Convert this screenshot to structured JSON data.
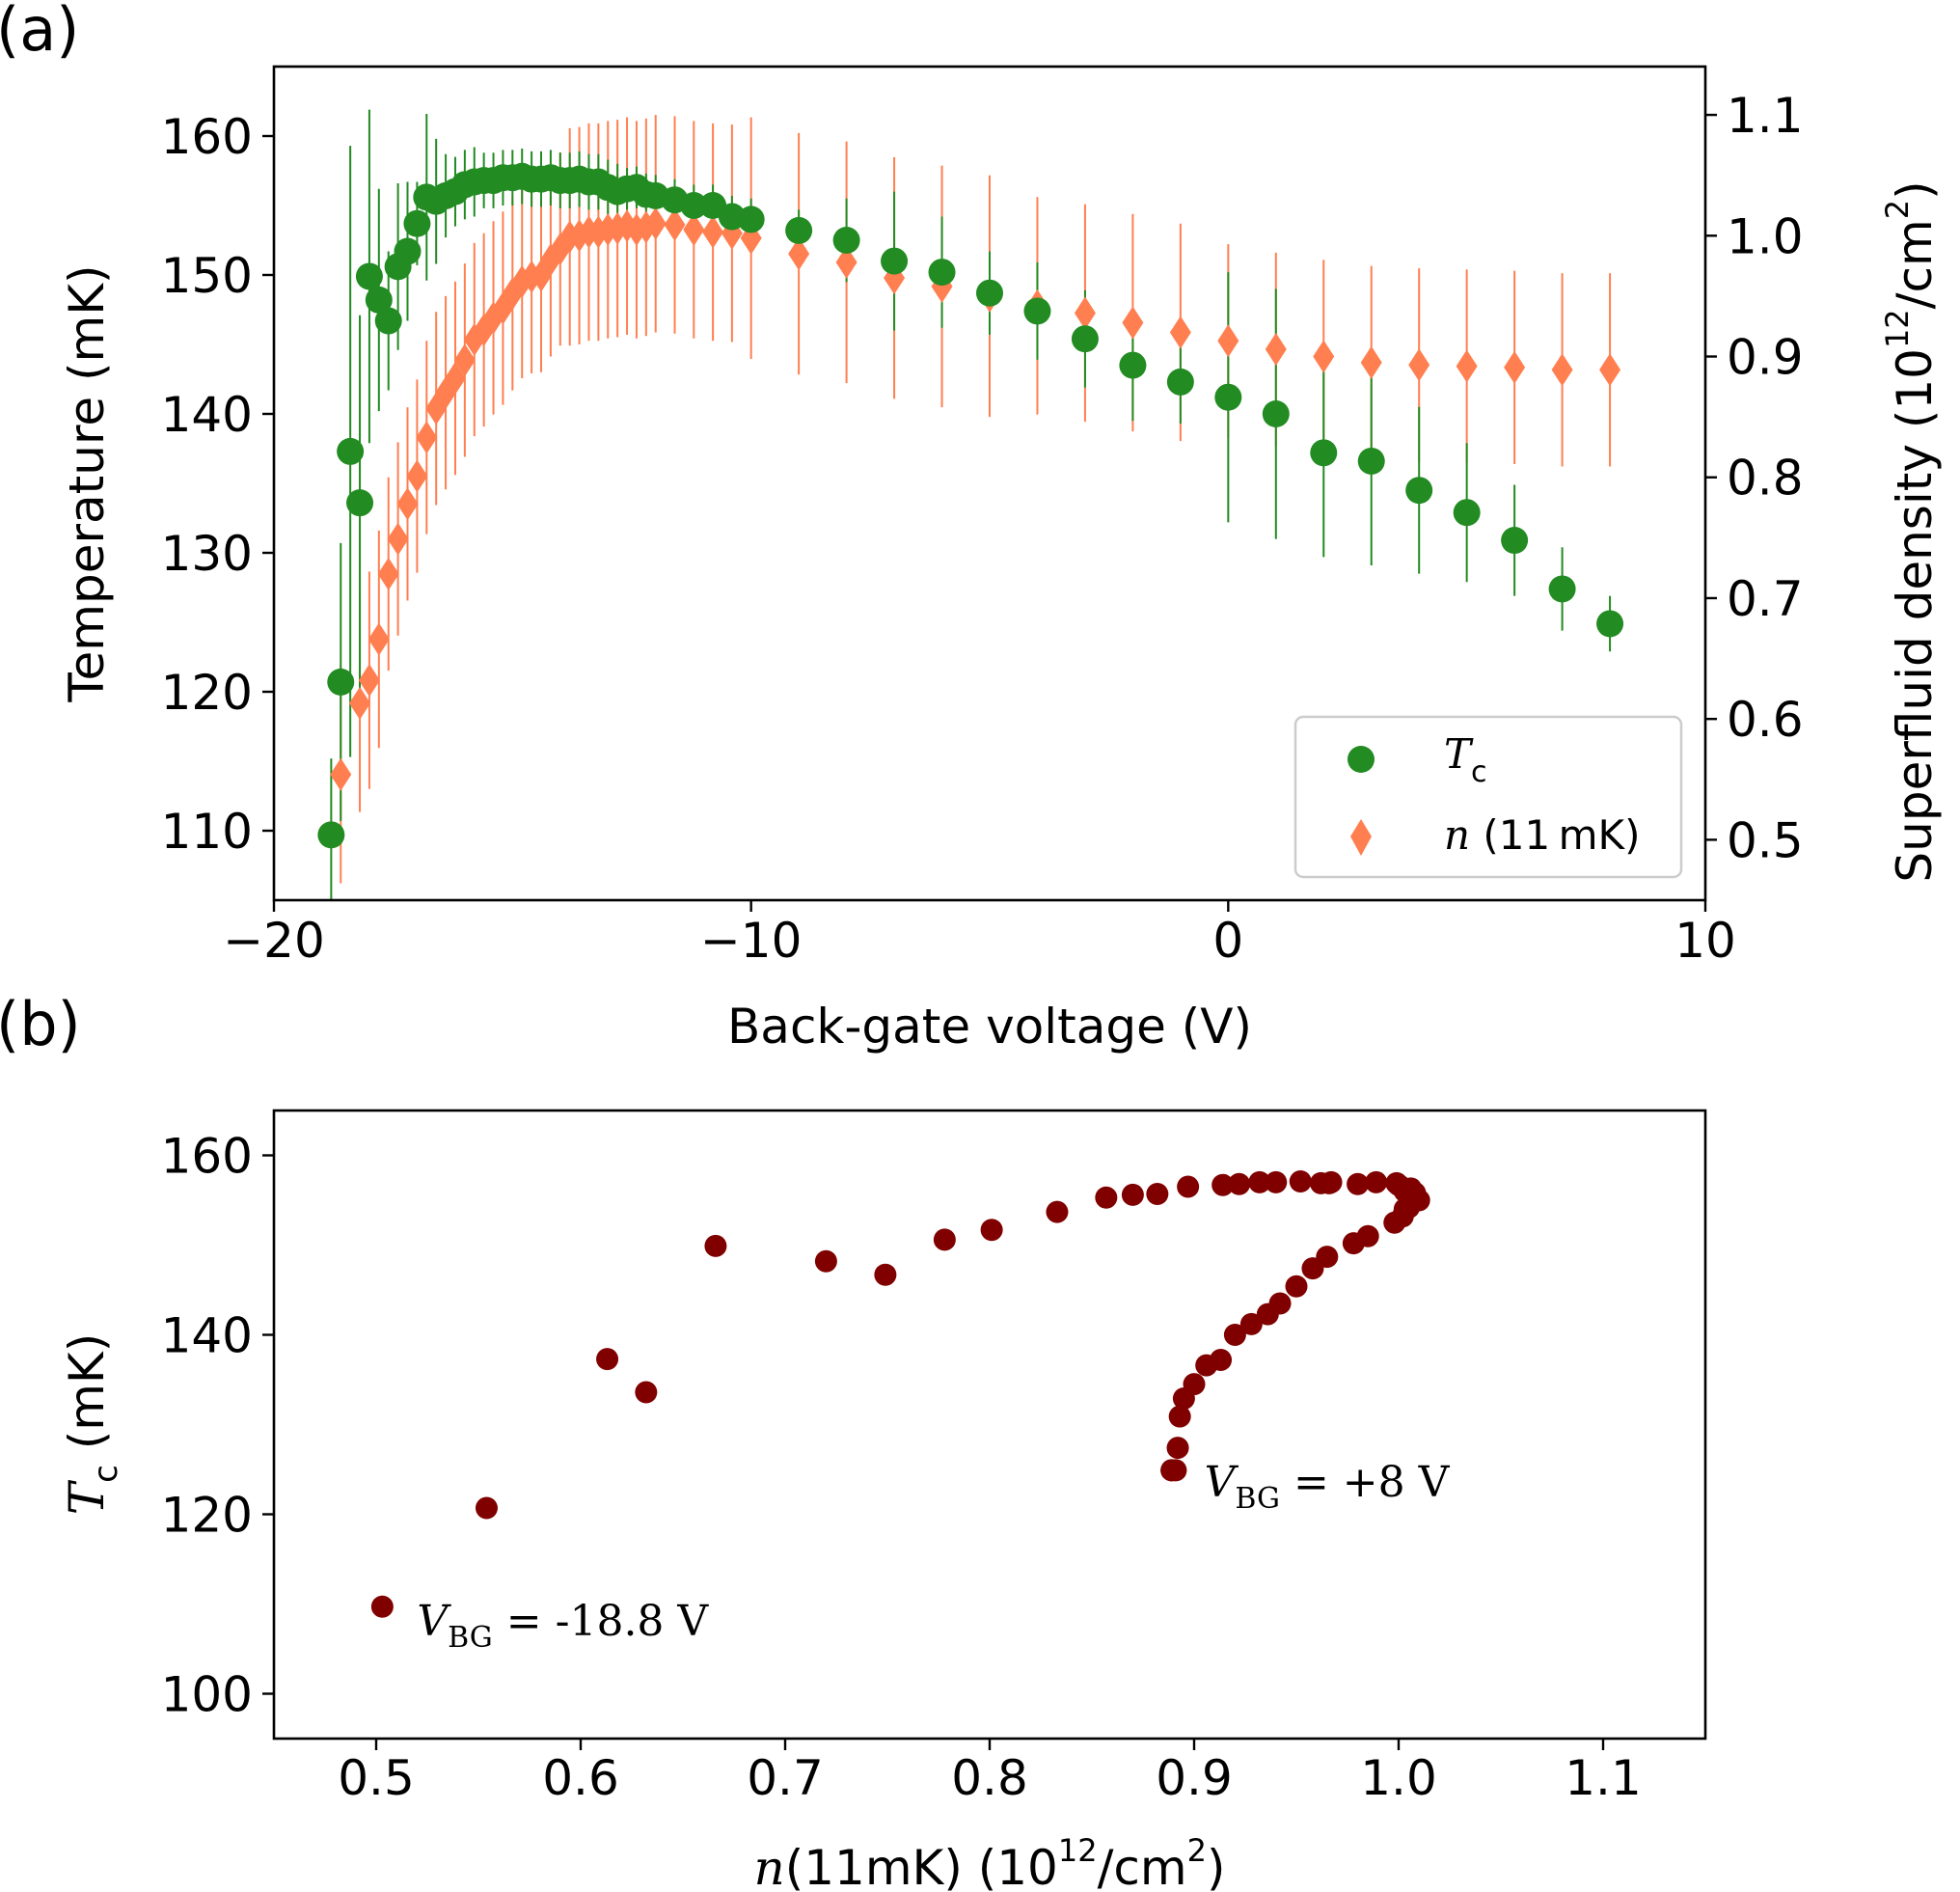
{
  "chart_data": [
    {
      "panel": "(a)",
      "type": "scatter",
      "xlabel": "Back-gate voltage (V)",
      "ylabel": "Temperature (mK)",
      "ylabel_right": "Superfluid density (10",
      "ylabel_right_sup": "12",
      "ylabel_right_tail": "/cm",
      "ylabel_right_sup2": "2",
      "ylabel_right_close": ")",
      "xlim": [
        -20,
        10
      ],
      "ylim": [
        105,
        165
      ],
      "ylim_right": [
        0.45,
        1.14
      ],
      "x_ticks": [
        -20,
        -10,
        0,
        10
      ],
      "x_tick_labels": [
        "−20",
        "−10",
        "0",
        "10"
      ],
      "y_ticks": [
        110,
        120,
        130,
        140,
        150,
        160
      ],
      "y_tick_labels": [
        "110",
        "120",
        "130",
        "140",
        "150",
        "160"
      ],
      "y_right_ticks": [
        0.5,
        0.6,
        0.7,
        0.8,
        0.9,
        1.0,
        1.1
      ],
      "y_right_tick_labels": [
        "0.5",
        "0.6",
        "0.7",
        "0.8",
        "0.9",
        "1.0",
        "1.1"
      ],
      "legend": {
        "placement": "lower right",
        "tc_label": "T",
        "tc_sub": "c",
        "n_label_italic": "n",
        "n_label_rest": " (11 mK)"
      },
      "colors": {
        "tc": "#228b22",
        "n": "#ff7f50",
        "frame": "#000000"
      },
      "series_tc": {
        "name": "Tc",
        "axis": "left",
        "x": [
          -18.8,
          -18.6,
          -18.4,
          -18.2,
          -18.0,
          -17.8,
          -17.6,
          -17.4,
          -17.2,
          -17.0,
          -16.8,
          -16.6,
          -16.4,
          -16.2,
          -16.0,
          -15.8,
          -15.6,
          -15.4,
          -15.2,
          -15.0,
          -14.8,
          -14.6,
          -14.4,
          -14.2,
          -14.0,
          -13.8,
          -13.6,
          -13.4,
          -13.2,
          -13.0,
          -12.8,
          -12.6,
          -12.4,
          -12.2,
          -12.0,
          -11.6,
          -11.2,
          -10.8,
          -10.4,
          -10.0,
          -9.0,
          -8.0,
          -7.0,
          -6.0,
          -5.0,
          -4.0,
          -3.0,
          -2.0,
          -1.0,
          0.0,
          1.0,
          2.0,
          3.0,
          4.0,
          5.0,
          6.0,
          7.0,
          8.0
        ],
        "y": [
          109.7,
          120.7,
          137.3,
          133.6,
          149.9,
          148.2,
          146.7,
          150.6,
          151.7,
          153.7,
          155.6,
          155.3,
          155.7,
          156.0,
          156.5,
          156.7,
          156.8,
          156.8,
          157.0,
          157.0,
          157.1,
          156.9,
          156.9,
          157.0,
          156.8,
          156.8,
          156.9,
          156.7,
          156.7,
          156.3,
          156.0,
          156.2,
          156.3,
          155.8,
          155.7,
          155.4,
          155.0,
          155.0,
          154.2,
          154.0,
          153.2,
          152.5,
          151.0,
          150.2,
          148.7,
          147.4,
          145.4,
          143.5,
          142.3,
          141.2,
          140.0,
          137.2,
          136.6,
          134.5,
          132.9,
          130.9,
          127.4,
          124.9
        ],
        "err": [
          5.5,
          10.0,
          22.0,
          13.5,
          12.0,
          8.0,
          5.0,
          6.0,
          5.0,
          3.0,
          6.0,
          4.5,
          3.0,
          2.5,
          2.5,
          2.5,
          2.0,
          2.0,
          2.0,
          2.0,
          2.0,
          2.0,
          2.0,
          2.0,
          2.0,
          2.0,
          2.0,
          2.0,
          2.0,
          2.0,
          2.0,
          1.5,
          1.5,
          1.5,
          1.5,
          1.5,
          1.5,
          1.5,
          1.5,
          1.5,
          1.5,
          3.0,
          5.0,
          4.0,
          3.0,
          3.5,
          3.5,
          4.0,
          3.0,
          9.0,
          9.0,
          7.5,
          7.5,
          6.0,
          5.0,
          4.0,
          3.0,
          2.0
        ]
      },
      "series_n": {
        "name": "n (11 mK)",
        "axis": "right",
        "x": [
          -18.6,
          -18.2,
          -18.0,
          -17.8,
          -17.6,
          -17.4,
          -17.2,
          -17.0,
          -16.8,
          -16.6,
          -16.4,
          -16.2,
          -16.0,
          -15.8,
          -15.6,
          -15.4,
          -15.2,
          -15.0,
          -14.8,
          -14.6,
          -14.4,
          -14.2,
          -14.0,
          -13.8,
          -13.6,
          -13.4,
          -13.2,
          -13.0,
          -12.8,
          -12.6,
          -12.4,
          -12.2,
          -12.0,
          -11.6,
          -11.2,
          -10.8,
          -10.4,
          -10.0,
          -9.0,
          -8.0,
          -7.0,
          -6.0,
          -5.0,
          -4.0,
          -3.0,
          -2.0,
          -1.0,
          0.0,
          1.0,
          2.0,
          3.0,
          4.0,
          5.0,
          6.0,
          7.0,
          8.0
        ],
        "y": [
          0.554,
          0.613,
          0.632,
          0.666,
          0.72,
          0.749,
          0.778,
          0.801,
          0.833,
          0.857,
          0.87,
          0.882,
          0.897,
          0.914,
          0.922,
          0.932,
          0.94,
          0.952,
          0.962,
          0.966,
          0.967,
          0.98,
          0.989,
          0.999,
          1.0,
          1.003,
          1.003,
          1.005,
          1.006,
          1.008,
          1.005,
          1.007,
          1.01,
          1.009,
          1.005,
          1.003,
          1.002,
          0.998,
          0.985,
          0.978,
          0.965,
          0.958,
          0.95,
          0.942,
          0.936,
          0.928,
          0.92,
          0.913,
          0.906,
          0.9,
          0.895,
          0.893,
          0.892,
          0.891,
          0.889,
          0.889
        ],
        "err": [
          0.09,
          0.09,
          0.09,
          0.09,
          0.08,
          0.08,
          0.08,
          0.08,
          0.08,
          0.08,
          0.08,
          0.08,
          0.08,
          0.08,
          0.08,
          0.08,
          0.08,
          0.08,
          0.08,
          0.08,
          0.08,
          0.08,
          0.08,
          0.09,
          0.09,
          0.09,
          0.09,
          0.09,
          0.09,
          0.09,
          0.09,
          0.09,
          0.09,
          0.09,
          0.09,
          0.09,
          0.09,
          0.1,
          0.1,
          0.1,
          0.1,
          0.1,
          0.1,
          0.09,
          0.09,
          0.09,
          0.09,
          0.08,
          0.08,
          0.08,
          0.08,
          0.08,
          0.08,
          0.08,
          0.08,
          0.08
        ]
      }
    },
    {
      "panel": "(b)",
      "type": "scatter",
      "xlabel_italic": "n",
      "xlabel_rest": "(11mK) (10",
      "xlabel_sup": "12",
      "xlabel_tail": "/cm",
      "xlabel_sup2": "2",
      "xlabel_close": ")",
      "ylabel_italic": "T",
      "ylabel_sub": "c",
      "ylabel_rest": " (mK)",
      "xlim": [
        0.45,
        1.15
      ],
      "ylim": [
        95,
        165
      ],
      "x_ticks": [
        0.5,
        0.6,
        0.7,
        0.8,
        0.9,
        1.0,
        1.1
      ],
      "x_tick_labels": [
        "0.5",
        "0.6",
        "0.7",
        "0.8",
        "0.9",
        "1.0",
        "1.1"
      ],
      "y_ticks": [
        100,
        120,
        140,
        160
      ],
      "y_tick_labels": [
        "100",
        "120",
        "140",
        "160"
      ],
      "colors": {
        "points": "#800000"
      },
      "annotations": [
        {
          "text_italic": "V",
          "text_sub": "BG",
          "text_rest": " = -18.8 V",
          "x": 0.52,
          "y": 106.5
        },
        {
          "text_italic": "V",
          "text_sub": "BG",
          "text_rest": " = +8 V",
          "x": 0.905,
          "y": 122.0
        }
      ],
      "points": {
        "x": [
          0.503,
          0.554,
          0.613,
          0.632,
          0.666,
          0.72,
          0.749,
          0.778,
          0.801,
          0.833,
          0.857,
          0.87,
          0.882,
          0.897,
          0.914,
          0.922,
          0.932,
          0.94,
          0.952,
          0.962,
          0.966,
          0.967,
          0.98,
          0.989,
          0.999,
          1.0,
          1.003,
          1.003,
          1.005,
          1.006,
          1.008,
          1.005,
          1.007,
          1.01,
          1.009,
          1.005,
          1.003,
          1.002,
          0.998,
          0.985,
          0.978,
          0.965,
          0.958,
          0.95,
          0.942,
          0.936,
          0.928,
          0.92,
          0.913,
          0.906,
          0.9,
          0.895,
          0.893,
          0.892,
          0.891,
          0.889,
          0.889
        ],
        "y": [
          109.7,
          120.7,
          137.3,
          133.6,
          149.9,
          148.2,
          146.7,
          150.6,
          151.7,
          153.7,
          155.3,
          155.6,
          155.7,
          156.5,
          156.7,
          156.8,
          157.0,
          157.0,
          157.1,
          156.9,
          156.9,
          157.0,
          156.8,
          157.0,
          156.9,
          156.7,
          156.3,
          156.0,
          156.2,
          156.3,
          155.8,
          155.7,
          155.4,
          155.0,
          155.0,
          154.2,
          154.0,
          153.2,
          152.5,
          151.0,
          150.2,
          148.7,
          147.4,
          145.4,
          143.5,
          142.3,
          141.2,
          140.0,
          137.2,
          136.6,
          134.5,
          132.9,
          130.9,
          127.4,
          124.9,
          124.9,
          124.9
        ]
      }
    }
  ],
  "panel_labels": [
    "(a)",
    "(b)"
  ]
}
